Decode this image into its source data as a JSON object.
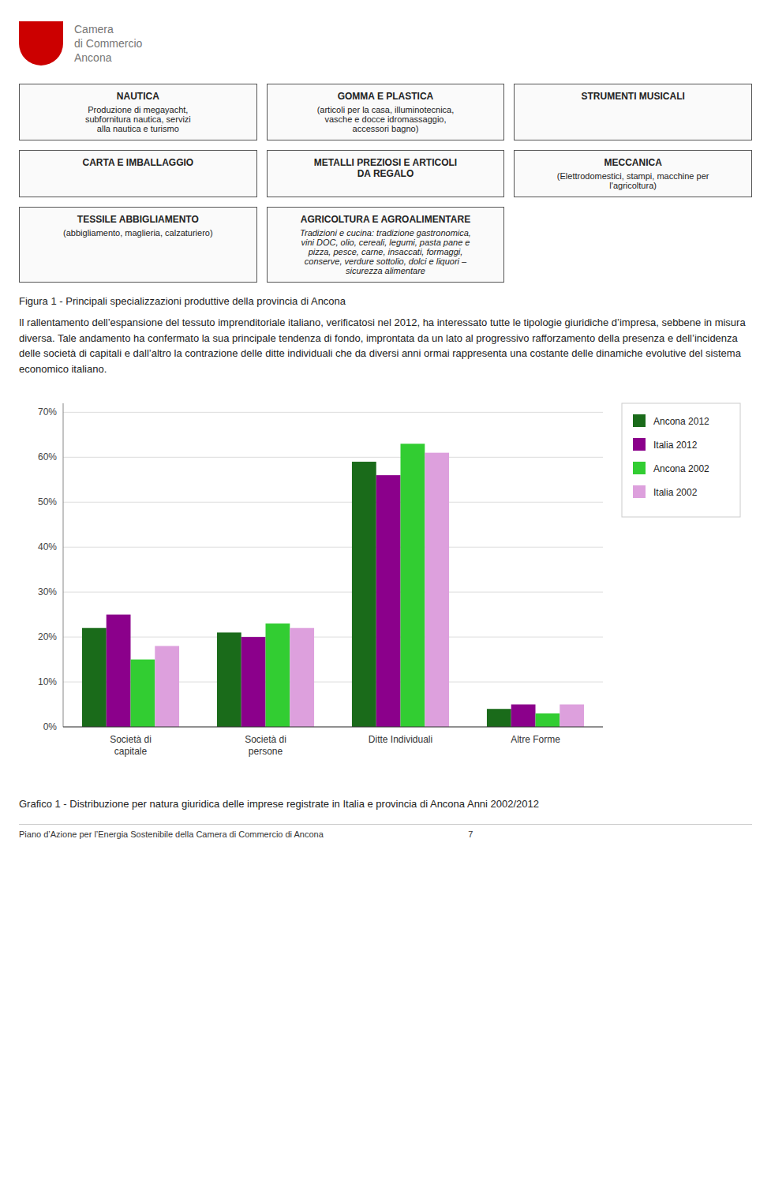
{
  "chart_data": {
    "type": "bar",
    "categories": [
      "Società di\ncapitale",
      "Società di\npersone",
      "Ditte Individuali",
      "Altre Forme"
    ],
    "series": [
      {
        "name": "Ancona 2012",
        "color": "#1a6b1a",
        "values": [
          22,
          21,
          59,
          4
        ]
      },
      {
        "name": "Italia 2012",
        "color": "#8b008b",
        "values": [
          25,
          20,
          56,
          5
        ]
      },
      {
        "name": "Ancona 2002",
        "color": "#32cd32",
        "values": [
          15,
          23,
          63,
          3
        ]
      },
      {
        "name": "Italia 2002",
        "color": "#dda0dd",
        "values": [
          18,
          22,
          61,
          5
        ]
      }
    ],
    "ylim": [
      0,
      72
    ],
    "yticks": [
      {
        "value": 0,
        "label": "0%"
      },
      {
        "value": 10,
        "label": "10%"
      },
      {
        "value": 20,
        "label": "20%"
      },
      {
        "value": 30,
        "label": "30%"
      },
      {
        "value": 40,
        "label": "40%"
      },
      {
        "value": 50,
        "label": "50%"
      },
      {
        "value": 60,
        "label": "60%"
      },
      {
        "value": 70,
        "label": "70%"
      }
    ],
    "grid": true,
    "legend": "right",
    "annotations": [
      "Camera\ndi Commercio\nAncona",
      "NAUTICA",
      "Produzione di megayacht,\nsubfornitura nautica, servizi\nalla nautica e turismo",
      "GOMMA E PLASTICA",
      "(articoli per la casa, illuminotecnica,\nvasche e docce idromassaggio,\naccessori bagno)",
      "STRUMENTI MUSICALI",
      "CARTA E IMBALLAGGIO",
      "METALLI PREZIOSI E ARTICOLI\nDA REGALO",
      "MECCANICA",
      "(Elettrodomestici, stampi, macchine per\nl'agricoltura)",
      "TESSILE ABBIGLIAMENTO",
      "(abbigliamento, maglieria, calzaturiero)",
      "AGRICOLTURA E AGROALIMENTARE",
      "Tradizioni e cucina: tradizione gastronomica,\nvini DOC, olio, cereali, legumi, pasta pane e\npizza, pesce, carne, insaccati, formaggi,\nconserve, verdure sottolio, dolci e liquori –\nsicurezza alimentare",
      "Figura 1 - Principali specializzazioni produttive della provincia di Ancona",
      "Il rallentamento dell’espansione del tessuto imprenditoriale italiano, verificatosi nel 2012, ha interessato tutte le tipologie giuridiche d’impresa, sebbene in misura diversa. Tale andamento ha confermato la sua principale tendenza di fondo, improntata da un lato al progressivo rafforzamento della presenza e dell’incidenza delle società di capitali e dall’altro la contrazione delle ditte individuali che da diversi anni ormai rappresenta una costante delle dinamiche evolutive del sistema economico italiano.",
      "Grafico 1 - Distribuzione per natura giuridica delle imprese registrate in Italia e provincia di Ancona Anni 2002/2012",
      "Piano d’Azione per l’Energia Sostenibile della Camera di Commercio di Ancona                                                            7"
    ]
  }
}
